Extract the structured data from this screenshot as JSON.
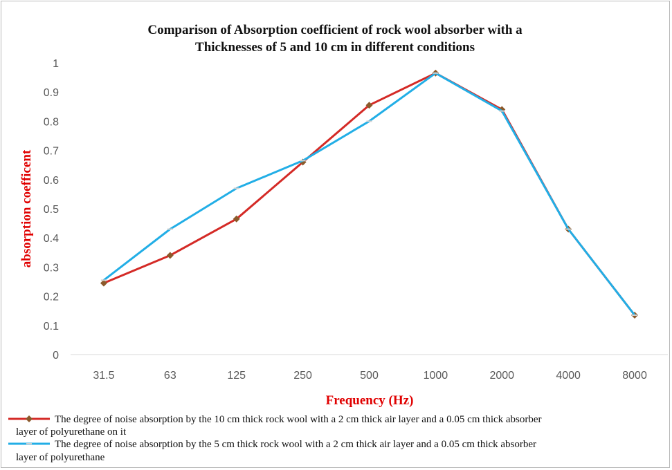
{
  "chart_data": {
    "type": "line",
    "title_lines": [
      "Comparison of Absorption coefficient of rock wool absorber with a",
      "Thicknesses of 5  and 10 cm in different conditions"
    ],
    "xlabel": "Frequency (Hz)",
    "ylabel": "absorption coefficent",
    "axis_title_color": "#e00000",
    "categories": [
      "31.5",
      "63",
      "125",
      "250",
      "500",
      "1000",
      "2000",
      "4000",
      "8000"
    ],
    "yticks": [
      "0",
      "0.1",
      "0.2",
      "0.3",
      "0.4",
      "0.5",
      "0.6",
      "0.7",
      "0.8",
      "0.9",
      "1"
    ],
    "ylim": [
      0,
      1
    ],
    "grid": false,
    "legend_position": "bottom",
    "series": [
      {
        "name_lines": [
          "The degree of noise absorption by the 10 cm thick rock wool with a 2 cm thick air layer and a 0.05 cm thick absorber",
          "layer of polyurethane on it"
        ],
        "color": "#d42a26",
        "marker": "diamond",
        "marker_color": "#8b5a2b",
        "values": [
          0.245,
          0.34,
          0.465,
          0.66,
          0.855,
          0.965,
          0.84,
          0.43,
          0.135
        ]
      },
      {
        "name_lines": [
          "The degree of noise absorption by the 5 cm thick rock wool with a 2 cm thick air layer and a 0.05 cm thick absorber",
          "layer of polyurethane"
        ],
        "color": "#22aee6",
        "marker": "dash",
        "marker_color": "#cfcfcf",
        "values": [
          0.255,
          0.43,
          0.57,
          0.665,
          0.8,
          0.965,
          0.835,
          0.43,
          0.135
        ]
      }
    ]
  }
}
